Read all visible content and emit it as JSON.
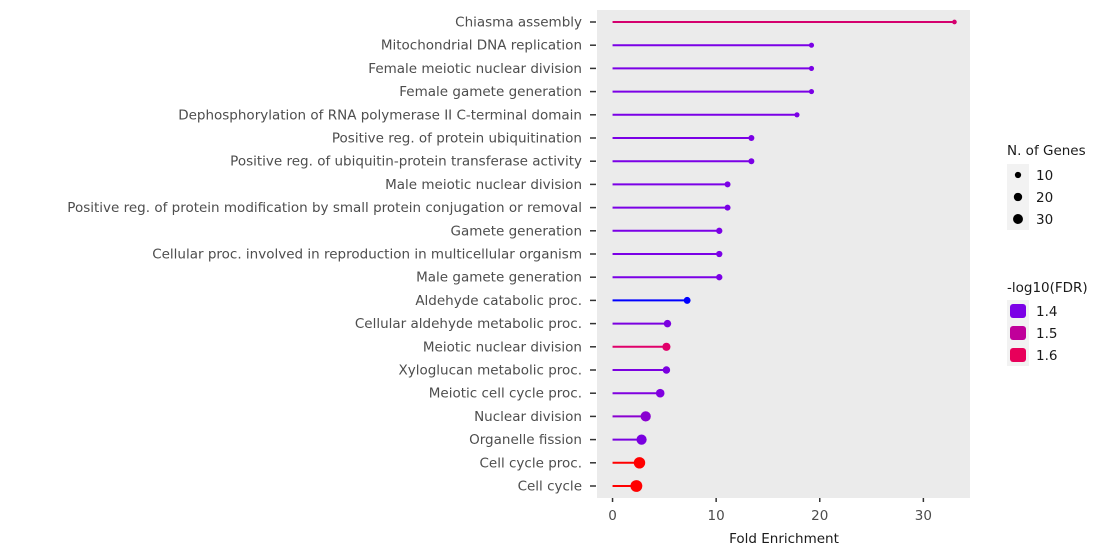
{
  "chart_data": {
    "type": "lollipop",
    "xlabel": "Fold Enrichment",
    "xlim": [
      -1.5,
      34.5
    ],
    "xticks": [
      0,
      10,
      20,
      30
    ],
    "grid": false,
    "legend_placement": "right",
    "size_legend": {
      "title": "N. of Genes",
      "entries": [
        10,
        20,
        30
      ]
    },
    "color_legend": {
      "title": "-log10(FDR)",
      "entries": [
        {
          "value": 1.4,
          "color": "#7b00e6"
        },
        {
          "value": 1.5,
          "color": "#c0009a"
        },
        {
          "value": 1.6,
          "color": "#e8005a"
        }
      ]
    },
    "categories": [
      "Chiasma assembly",
      "Mitochondrial DNA replication",
      "Female meiotic nuclear division",
      "Female gamete generation",
      "Dephosphorylation of RNA polymerase II C-terminal domain",
      "Positive reg. of protein ubiquitination",
      "Positive reg. of ubiquitin-protein transferase activity",
      "Male meiotic nuclear division",
      "Positive reg. of protein modification by small protein conjugation or removal",
      "Gamete generation",
      "Cellular proc. involved in reproduction in multicellular organism",
      "Male gamete generation",
      "Aldehyde catabolic proc.",
      "Cellular aldehyde metabolic proc.",
      "Meiotic nuclear division",
      "Xyloglucan metabolic proc.",
      "Meiotic cell cycle proc.",
      "Nuclear division",
      "Organelle fission",
      "Cell cycle proc.",
      "Cell cycle"
    ],
    "fold_enrichment": [
      33.0,
      19.2,
      19.2,
      19.2,
      17.8,
      13.4,
      13.4,
      11.1,
      11.1,
      10.3,
      10.3,
      10.3,
      7.2,
      5.3,
      5.2,
      5.2,
      4.6,
      3.2,
      2.8,
      2.6,
      2.3
    ],
    "n_genes": [
      2,
      3,
      3,
      3,
      3,
      5,
      5,
      5,
      5,
      6,
      6,
      6,
      8,
      10,
      13,
      10,
      15,
      24,
      24,
      32,
      35
    ],
    "neg_log10_fdr": [
      1.6,
      1.4,
      1.4,
      1.4,
      1.4,
      1.4,
      1.4,
      1.4,
      1.4,
      1.4,
      1.4,
      1.4,
      1.3,
      1.4,
      1.6,
      1.4,
      1.4,
      1.42,
      1.4,
      1.7,
      1.7
    ],
    "colors": [
      "#d4006e",
      "#7b00e6",
      "#7b00e6",
      "#7b00e6",
      "#7b00e6",
      "#7b00e6",
      "#7b00e6",
      "#7b00e6",
      "#7b00e6",
      "#7b00e6",
      "#7b00e6",
      "#7b00e6",
      "#0000ff",
      "#7b00e0",
      "#e0006a",
      "#7b00e0",
      "#8000e0",
      "#8a00d0",
      "#7a00e0",
      "#ff0000",
      "#ff0000"
    ]
  }
}
